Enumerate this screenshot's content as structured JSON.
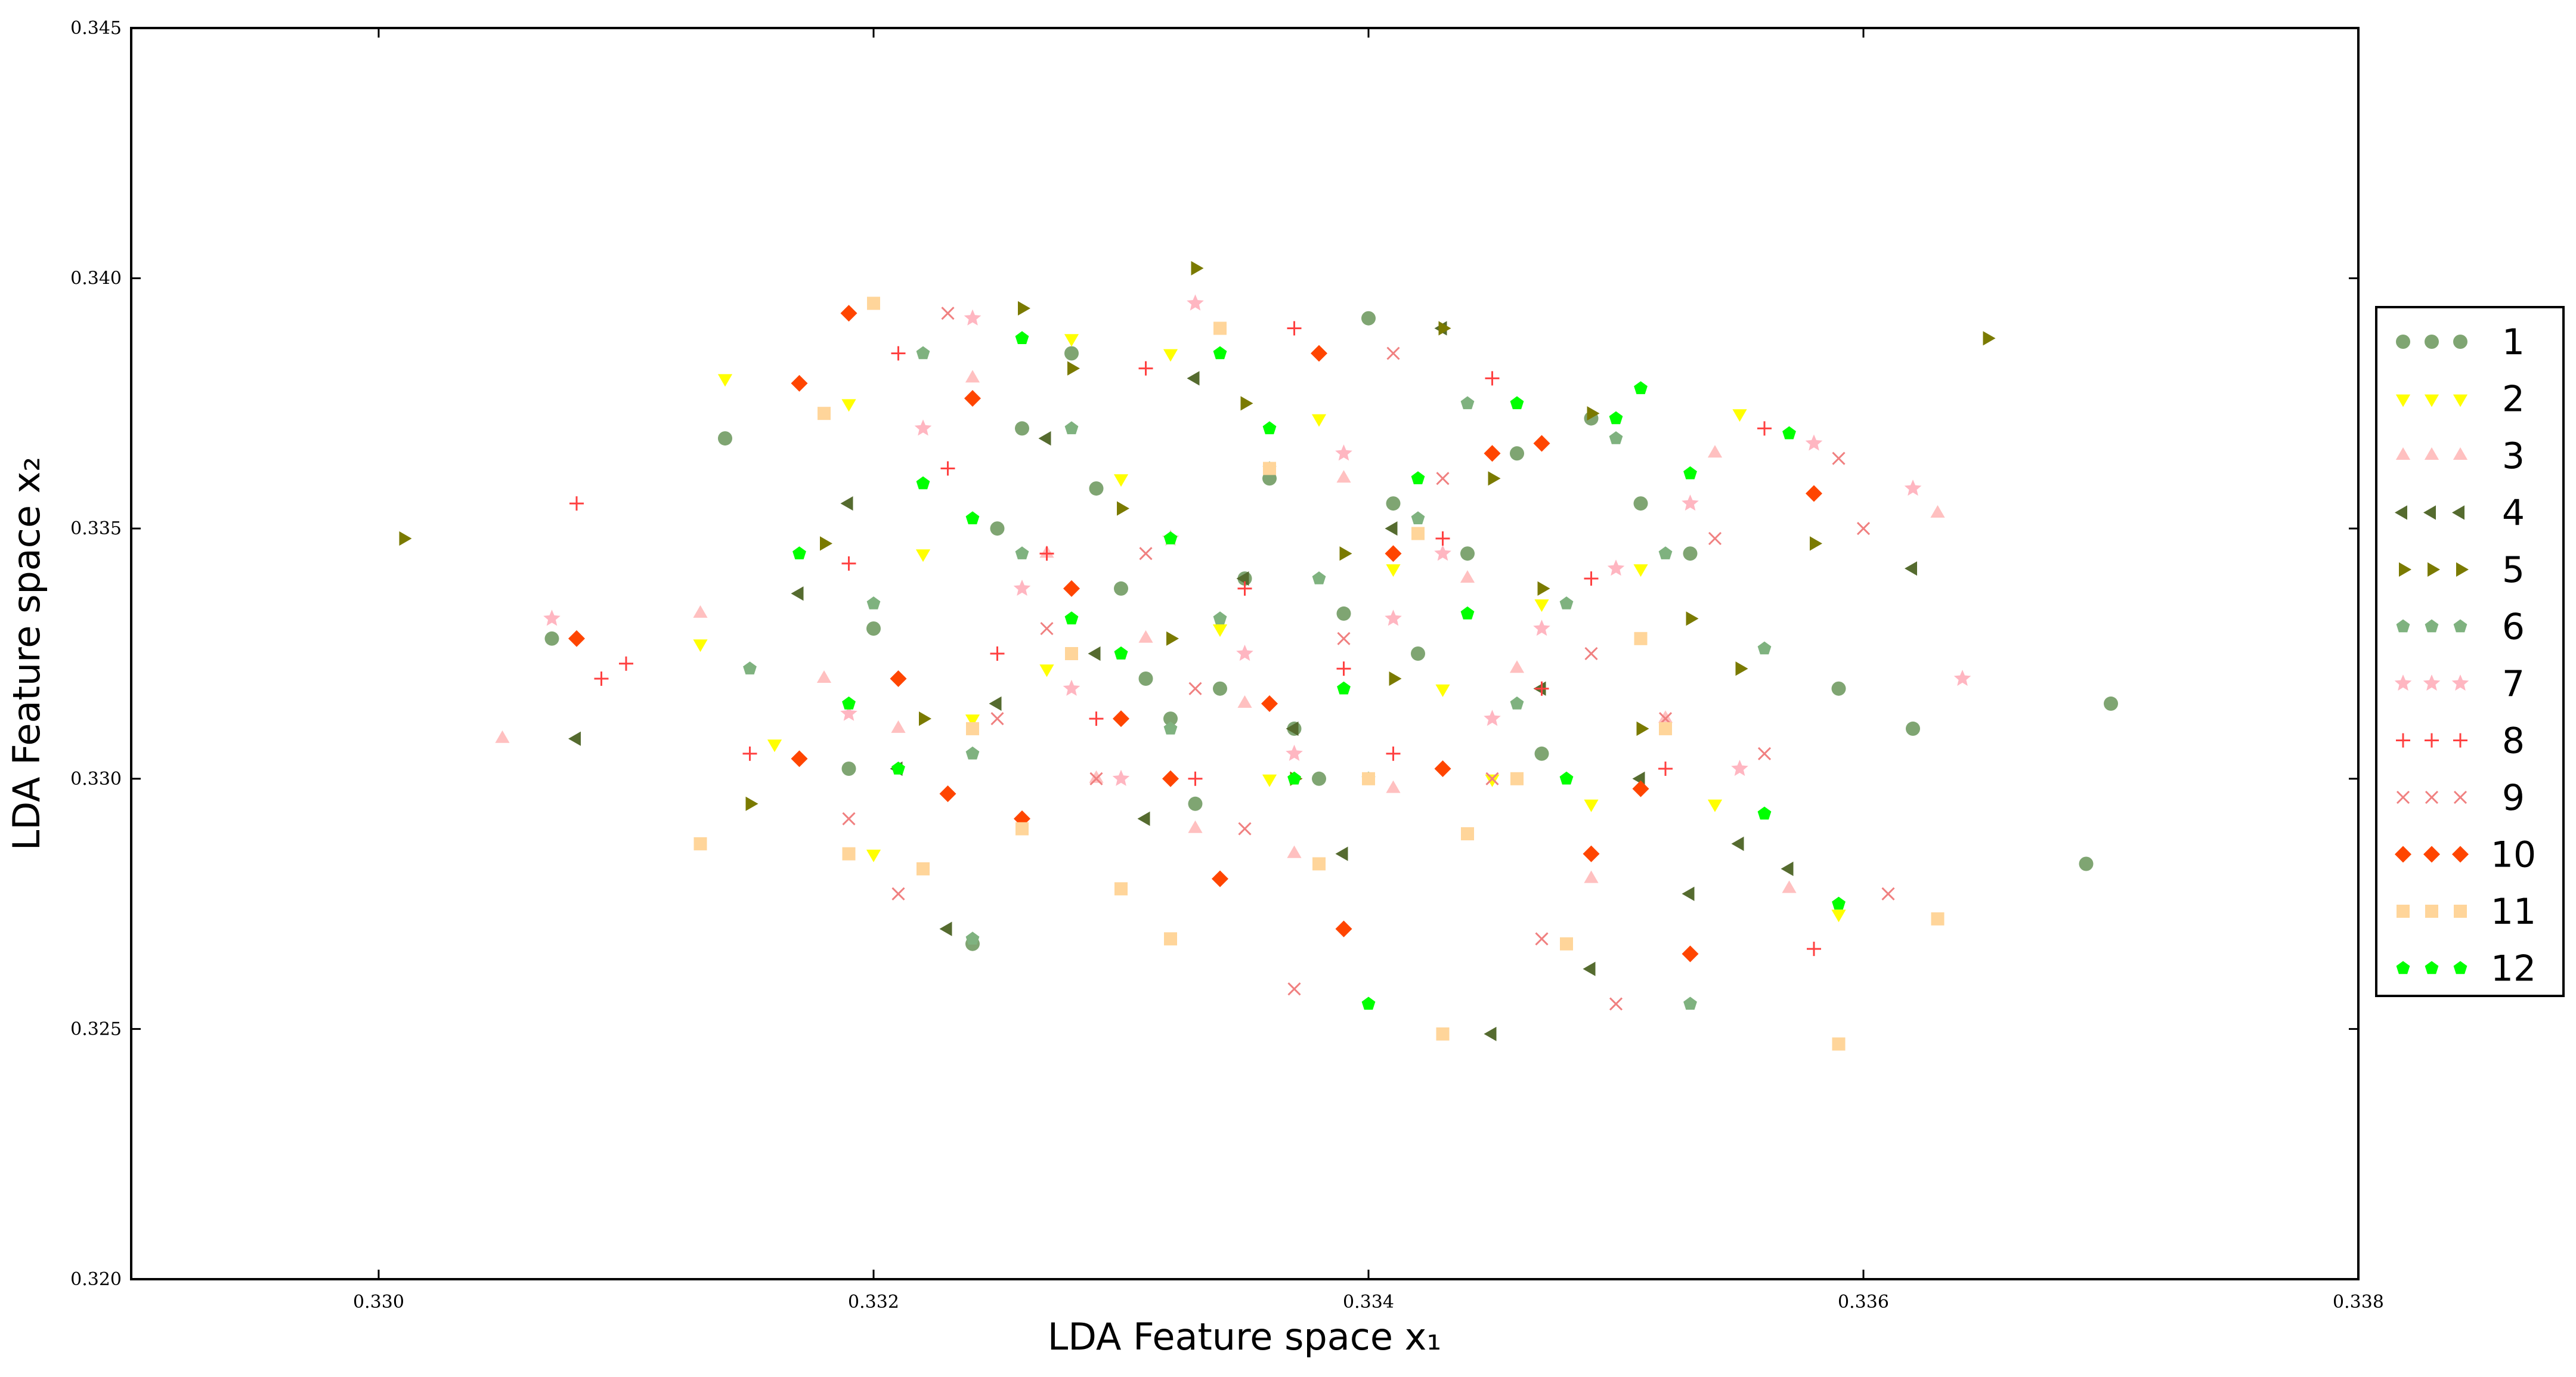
{
  "chart_data": {
    "type": "scatter",
    "xlabel": "LDA Feature space x₁",
    "ylabel": "LDA Feature space x₂",
    "xlim": [
      0.329,
      0.338
    ],
    "ylim": [
      0.32,
      0.345
    ],
    "xticks": [
      "0.330",
      "0.332",
      "0.334",
      "0.336",
      "0.338"
    ],
    "yticks": [
      "0.320",
      "0.325",
      "0.330",
      "0.335",
      "0.340",
      "0.345"
    ],
    "grid": false,
    "legend_position": "right",
    "series": [
      {
        "name": "1",
        "marker": "circle",
        "color": "#7fa572",
        "points": [
          [
            0.3307,
            0.3328
          ],
          [
            0.3314,
            0.3368
          ],
          [
            0.3319,
            0.3302
          ],
          [
            0.332,
            0.333
          ],
          [
            0.3325,
            0.335
          ],
          [
            0.3326,
            0.337
          ],
          [
            0.3328,
            0.3385
          ],
          [
            0.3329,
            0.3358
          ],
          [
            0.333,
            0.3338
          ],
          [
            0.3331,
            0.332
          ],
          [
            0.3332,
            0.3312
          ],
          [
            0.3333,
            0.3295
          ],
          [
            0.3334,
            0.3318
          ],
          [
            0.3335,
            0.334
          ],
          [
            0.3336,
            0.336
          ],
          [
            0.3337,
            0.331
          ],
          [
            0.3338,
            0.33
          ],
          [
            0.3339,
            0.3333
          ],
          [
            0.334,
            0.3392
          ],
          [
            0.3341,
            0.3355
          ],
          [
            0.3342,
            0.3325
          ],
          [
            0.3344,
            0.3345
          ],
          [
            0.3346,
            0.3365
          ],
          [
            0.3347,
            0.3305
          ],
          [
            0.3349,
            0.3372
          ],
          [
            0.3351,
            0.3355
          ],
          [
            0.3353,
            0.3345
          ],
          [
            0.3324,
            0.3267
          ],
          [
            0.3359,
            0.3318
          ],
          [
            0.3362,
            0.331
          ],
          [
            0.3369,
            0.3283
          ],
          [
            0.337,
            0.3315
          ]
        ]
      },
      {
        "name": "2",
        "marker": "triangle-down",
        "color": "#ffff00",
        "points": [
          [
            0.3313,
            0.3327
          ],
          [
            0.3314,
            0.338
          ],
          [
            0.3316,
            0.3307
          ],
          [
            0.3319,
            0.3375
          ],
          [
            0.332,
            0.3285
          ],
          [
            0.3322,
            0.3345
          ],
          [
            0.3324,
            0.3312
          ],
          [
            0.3327,
            0.3322
          ],
          [
            0.3328,
            0.3388
          ],
          [
            0.333,
            0.336
          ],
          [
            0.3332,
            0.3385
          ],
          [
            0.3334,
            0.333
          ],
          [
            0.3336,
            0.33
          ],
          [
            0.3338,
            0.3372
          ],
          [
            0.3341,
            0.3342
          ],
          [
            0.3343,
            0.3318
          ],
          [
            0.3345,
            0.33
          ],
          [
            0.3347,
            0.3335
          ],
          [
            0.3349,
            0.3295
          ],
          [
            0.3351,
            0.3342
          ],
          [
            0.3355,
            0.3373
          ],
          [
            0.3359,
            0.3273
          ],
          [
            0.3354,
            0.3295
          ]
        ]
      },
      {
        "name": "3",
        "marker": "triangle-up",
        "color": "#ffc0c0",
        "points": [
          [
            0.3305,
            0.3308
          ],
          [
            0.3313,
            0.3333
          ],
          [
            0.3318,
            0.332
          ],
          [
            0.3321,
            0.331
          ],
          [
            0.3324,
            0.338
          ],
          [
            0.3327,
            0.3345
          ],
          [
            0.3329,
            0.33
          ],
          [
            0.3331,
            0.3328
          ],
          [
            0.3333,
            0.329
          ],
          [
            0.3335,
            0.3315
          ],
          [
            0.3337,
            0.3285
          ],
          [
            0.3339,
            0.336
          ],
          [
            0.3341,
            0.3298
          ],
          [
            0.3344,
            0.334
          ],
          [
            0.3346,
            0.3322
          ],
          [
            0.3349,
            0.328
          ],
          [
            0.3352,
            0.3312
          ],
          [
            0.3354,
            0.3365
          ],
          [
            0.3357,
            0.3278
          ],
          [
            0.3363,
            0.3353
          ]
        ]
      },
      {
        "name": "4",
        "marker": "triangle-left",
        "color": "#556b2f",
        "points": [
          [
            0.3308,
            0.3308
          ],
          [
            0.3317,
            0.3337
          ],
          [
            0.3319,
            0.3355
          ],
          [
            0.3321,
            0.3302
          ],
          [
            0.3323,
            0.327
          ],
          [
            0.3325,
            0.3315
          ],
          [
            0.3327,
            0.3368
          ],
          [
            0.3329,
            0.3325
          ],
          [
            0.3331,
            0.3292
          ],
          [
            0.3333,
            0.338
          ],
          [
            0.3335,
            0.334
          ],
          [
            0.3337,
            0.331
          ],
          [
            0.3339,
            0.3285
          ],
          [
            0.3341,
            0.335
          ],
          [
            0.3343,
            0.339
          ],
          [
            0.3345,
            0.3249
          ],
          [
            0.3347,
            0.3318
          ],
          [
            0.3349,
            0.3262
          ],
          [
            0.3351,
            0.33
          ],
          [
            0.3353,
            0.3277
          ],
          [
            0.3355,
            0.3287
          ],
          [
            0.3357,
            0.3282
          ],
          [
            0.3362,
            0.3342
          ]
        ]
      },
      {
        "name": "5",
        "marker": "triangle-right",
        "color": "#7a7a00",
        "points": [
          [
            0.3301,
            0.3348
          ],
          [
            0.3315,
            0.3295
          ],
          [
            0.3318,
            0.3347
          ],
          [
            0.3322,
            0.3312
          ],
          [
            0.3326,
            0.3394
          ],
          [
            0.3328,
            0.3382
          ],
          [
            0.333,
            0.3354
          ],
          [
            0.3332,
            0.3328
          ],
          [
            0.3333,
            0.3402
          ],
          [
            0.3335,
            0.3375
          ],
          [
            0.3337,
            0.33
          ],
          [
            0.3339,
            0.3345
          ],
          [
            0.3341,
            0.332
          ],
          [
            0.3343,
            0.339
          ],
          [
            0.3345,
            0.336
          ],
          [
            0.3347,
            0.3338
          ],
          [
            0.3349,
            0.3373
          ],
          [
            0.3351,
            0.331
          ],
          [
            0.3353,
            0.3332
          ],
          [
            0.3355,
            0.3322
          ],
          [
            0.3358,
            0.3347
          ],
          [
            0.3365,
            0.3388
          ]
        ]
      },
      {
        "name": "6",
        "marker": "pentagon",
        "color": "#7fb27f",
        "points": [
          [
            0.3315,
            0.3322
          ],
          [
            0.332,
            0.3335
          ],
          [
            0.3322,
            0.3385
          ],
          [
            0.3324,
            0.3305
          ],
          [
            0.3326,
            0.3345
          ],
          [
            0.3328,
            0.337
          ],
          [
            0.333,
            0.3325
          ],
          [
            0.3332,
            0.331
          ],
          [
            0.3334,
            0.3332
          ],
          [
            0.3336,
            0.3362
          ],
          [
            0.3338,
            0.334
          ],
          [
            0.334,
            0.33
          ],
          [
            0.3342,
            0.3352
          ],
          [
            0.3344,
            0.3375
          ],
          [
            0.3346,
            0.3315
          ],
          [
            0.3348,
            0.3335
          ],
          [
            0.335,
            0.3368
          ],
          [
            0.3352,
            0.3345
          ],
          [
            0.3353,
            0.3255
          ],
          [
            0.3356,
            0.3326
          ],
          [
            0.3324,
            0.3268
          ]
        ]
      },
      {
        "name": "7",
        "marker": "star",
        "color": "#ffb6c1",
        "points": [
          [
            0.3307,
            0.3332
          ],
          [
            0.3319,
            0.3313
          ],
          [
            0.3322,
            0.337
          ],
          [
            0.3324,
            0.3392
          ],
          [
            0.3326,
            0.3338
          ],
          [
            0.3328,
            0.3318
          ],
          [
            0.333,
            0.33
          ],
          [
            0.3332,
            0.3348
          ],
          [
            0.3333,
            0.3395
          ],
          [
            0.3335,
            0.3325
          ],
          [
            0.3337,
            0.3305
          ],
          [
            0.3339,
            0.3365
          ],
          [
            0.3341,
            0.3332
          ],
          [
            0.3343,
            0.3345
          ],
          [
            0.3345,
            0.3312
          ],
          [
            0.3347,
            0.333
          ],
          [
            0.335,
            0.3342
          ],
          [
            0.3353,
            0.3355
          ],
          [
            0.3355,
            0.3302
          ],
          [
            0.3358,
            0.3367
          ],
          [
            0.3362,
            0.3358
          ],
          [
            0.3364,
            0.332
          ]
        ]
      },
      {
        "name": "8",
        "marker": "plus",
        "color": "#ff4040",
        "points": [
          [
            0.3308,
            0.3355
          ],
          [
            0.3309,
            0.332
          ],
          [
            0.331,
            0.3323
          ],
          [
            0.3315,
            0.3305
          ],
          [
            0.3319,
            0.3343
          ],
          [
            0.3321,
            0.3385
          ],
          [
            0.3323,
            0.3362
          ],
          [
            0.3325,
            0.3325
          ],
          [
            0.3327,
            0.3345
          ],
          [
            0.3329,
            0.3312
          ],
          [
            0.3331,
            0.3382
          ],
          [
            0.3333,
            0.33
          ],
          [
            0.3335,
            0.3338
          ],
          [
            0.3337,
            0.339
          ],
          [
            0.3339,
            0.3322
          ],
          [
            0.3341,
            0.3305
          ],
          [
            0.3343,
            0.3348
          ],
          [
            0.3345,
            0.338
          ],
          [
            0.3347,
            0.3318
          ],
          [
            0.3349,
            0.334
          ],
          [
            0.3352,
            0.3302
          ],
          [
            0.3356,
            0.337
          ],
          [
            0.3358,
            0.3266
          ]
        ]
      },
      {
        "name": "9",
        "marker": "x",
        "color": "#f08080",
        "points": [
          [
            0.3319,
            0.3292
          ],
          [
            0.3321,
            0.3277
          ],
          [
            0.3323,
            0.3393
          ],
          [
            0.3325,
            0.3312
          ],
          [
            0.3327,
            0.333
          ],
          [
            0.3329,
            0.33
          ],
          [
            0.3331,
            0.3345
          ],
          [
            0.3333,
            0.3318
          ],
          [
            0.3335,
            0.329
          ],
          [
            0.3337,
            0.3258
          ],
          [
            0.3339,
            0.3328
          ],
          [
            0.3341,
            0.3385
          ],
          [
            0.3343,
            0.336
          ],
          [
            0.3345,
            0.33
          ],
          [
            0.3347,
            0.3268
          ],
          [
            0.3349,
            0.3325
          ],
          [
            0.335,
            0.3255
          ],
          [
            0.3352,
            0.3312
          ],
          [
            0.3354,
            0.3348
          ],
          [
            0.3356,
            0.3305
          ],
          [
            0.3359,
            0.3364
          ],
          [
            0.3361,
            0.3277
          ],
          [
            0.336,
            0.335
          ]
        ]
      },
      {
        "name": "10",
        "marker": "diamond",
        "color": "#ff4500",
        "points": [
          [
            0.3308,
            0.3328
          ],
          [
            0.3317,
            0.3379
          ],
          [
            0.3317,
            0.3304
          ],
          [
            0.3319,
            0.3393
          ],
          [
            0.3321,
            0.332
          ],
          [
            0.3323,
            0.3297
          ],
          [
            0.3324,
            0.3376
          ],
          [
            0.3326,
            0.3292
          ],
          [
            0.3328,
            0.3338
          ],
          [
            0.333,
            0.3312
          ],
          [
            0.3332,
            0.33
          ],
          [
            0.3334,
            0.328
          ],
          [
            0.3336,
            0.3315
          ],
          [
            0.3338,
            0.3385
          ],
          [
            0.3339,
            0.327
          ],
          [
            0.3341,
            0.3345
          ],
          [
            0.3343,
            0.3302
          ],
          [
            0.3345,
            0.3365
          ],
          [
            0.3347,
            0.3367
          ],
          [
            0.3349,
            0.3285
          ],
          [
            0.3351,
            0.3298
          ],
          [
            0.3353,
            0.3265
          ],
          [
            0.3358,
            0.3357
          ]
        ]
      },
      {
        "name": "11",
        "marker": "square",
        "color": "#ffd59a",
        "points": [
          [
            0.3313,
            0.3287
          ],
          [
            0.3318,
            0.3373
          ],
          [
            0.3319,
            0.3285
          ],
          [
            0.332,
            0.3395
          ],
          [
            0.3322,
            0.3282
          ],
          [
            0.3324,
            0.331
          ],
          [
            0.3326,
            0.329
          ],
          [
            0.3328,
            0.3325
          ],
          [
            0.333,
            0.3278
          ],
          [
            0.3332,
            0.3268
          ],
          [
            0.3334,
            0.339
          ],
          [
            0.3336,
            0.3362
          ],
          [
            0.3338,
            0.3283
          ],
          [
            0.334,
            0.33
          ],
          [
            0.3342,
            0.3349
          ],
          [
            0.3344,
            0.3289
          ],
          [
            0.3346,
            0.33
          ],
          [
            0.3348,
            0.3267
          ],
          [
            0.3351,
            0.3328
          ],
          [
            0.3352,
            0.331
          ],
          [
            0.3359,
            0.3247
          ],
          [
            0.3363,
            0.3272
          ],
          [
            0.3343,
            0.3249
          ]
        ]
      },
      {
        "name": "12",
        "marker": "pentagon",
        "color": "#00ff00",
        "points": [
          [
            0.3317,
            0.3345
          ],
          [
            0.3319,
            0.3315
          ],
          [
            0.3321,
            0.3302
          ],
          [
            0.3322,
            0.3359
          ],
          [
            0.3324,
            0.3352
          ],
          [
            0.3326,
            0.3388
          ],
          [
            0.3328,
            0.3332
          ],
          [
            0.333,
            0.3325
          ],
          [
            0.3332,
            0.3348
          ],
          [
            0.3334,
            0.3385
          ],
          [
            0.3336,
            0.337
          ],
          [
            0.3337,
            0.33
          ],
          [
            0.3339,
            0.3318
          ],
          [
            0.334,
            0.3255
          ],
          [
            0.3342,
            0.336
          ],
          [
            0.3344,
            0.3333
          ],
          [
            0.3346,
            0.3375
          ],
          [
            0.3348,
            0.33
          ],
          [
            0.335,
            0.3372
          ],
          [
            0.3351,
            0.3378
          ],
          [
            0.3353,
            0.3361
          ],
          [
            0.3356,
            0.3293
          ],
          [
            0.3357,
            0.3369
          ],
          [
            0.3359,
            0.3275
          ]
        ]
      }
    ]
  }
}
